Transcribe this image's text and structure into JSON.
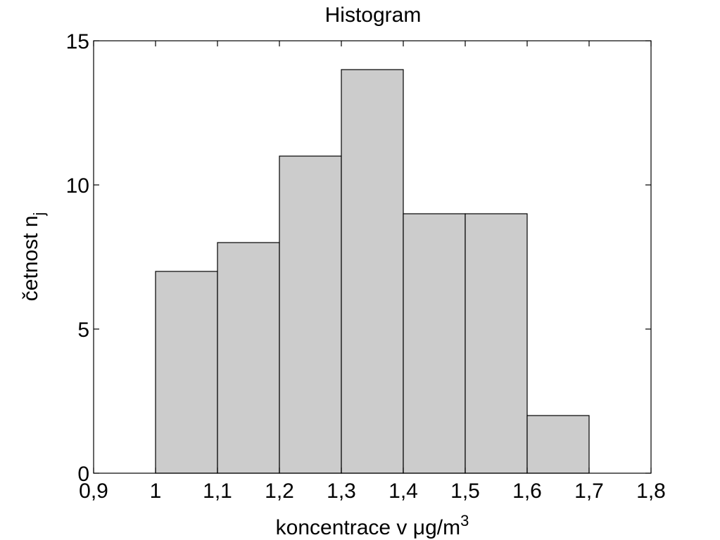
{
  "chart_data": {
    "type": "bar",
    "title": "Histogram",
    "xlabel": {
      "main": "koncentrace v ",
      "mu": "μ",
      "unit": "g/m",
      "sup": "3"
    },
    "ylabel": {
      "main": "četnost n",
      "sub": "j"
    },
    "bins": [
      {
        "x0": 1.0,
        "x1": 1.1,
        "value": 7
      },
      {
        "x0": 1.1,
        "x1": 1.2,
        "value": 8
      },
      {
        "x0": 1.2,
        "x1": 1.3,
        "value": 11
      },
      {
        "x0": 1.3,
        "x1": 1.4,
        "value": 14
      },
      {
        "x0": 1.4,
        "x1": 1.5,
        "value": 9
      },
      {
        "x0": 1.5,
        "x1": 1.6,
        "value": 9
      },
      {
        "x0": 1.6,
        "x1": 1.7,
        "value": 2
      }
    ],
    "xlim": [
      0.9,
      1.8
    ],
    "ylim": [
      0,
      15
    ],
    "xticks": [
      {
        "value": 0.9,
        "label": "0,9"
      },
      {
        "value": 1.0,
        "label": "1"
      },
      {
        "value": 1.1,
        "label": "1,1"
      },
      {
        "value": 1.2,
        "label": "1,2"
      },
      {
        "value": 1.3,
        "label": "1,3"
      },
      {
        "value": 1.4,
        "label": "1,4"
      },
      {
        "value": 1.5,
        "label": "1,5"
      },
      {
        "value": 1.6,
        "label": "1,6"
      },
      {
        "value": 1.7,
        "label": "1,7"
      },
      {
        "value": 1.8,
        "label": "1,8"
      }
    ],
    "yticks": [
      {
        "value": 0,
        "label": "0"
      },
      {
        "value": 5,
        "label": "5"
      },
      {
        "value": 10,
        "label": "10"
      },
      {
        "value": 15,
        "label": "15"
      }
    ],
    "bar_color": "#cccccc",
    "edge_color": "#000000",
    "grid": false,
    "legend": "none"
  }
}
